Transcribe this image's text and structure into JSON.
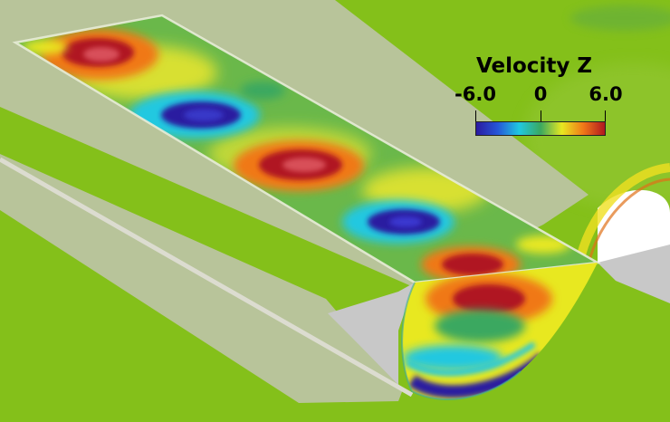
{
  "legend": {
    "title": "Velocity Z",
    "tick_min": "-6.0",
    "tick_mid": "0",
    "tick_max": "6.0",
    "range": [
      -6.0,
      6.0
    ],
    "colormap": [
      "#2a1aa0",
      "#2656d8",
      "#20c8e0",
      "#3aa860",
      "#e8e820",
      "#f07818",
      "#b01820"
    ]
  },
  "colors": {
    "background_field": "#84c01a",
    "solid_wall": "#c8c8c8",
    "ground_plane": "#b8c49a"
  }
}
